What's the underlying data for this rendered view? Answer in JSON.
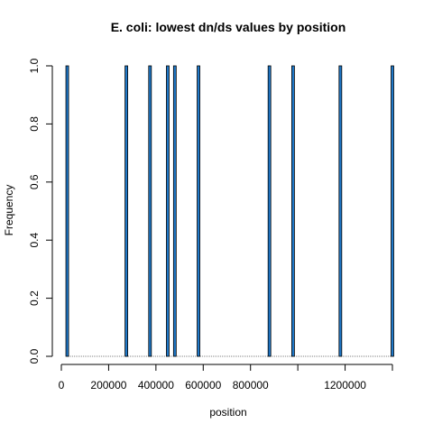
{
  "chart_data": {
    "type": "bar",
    "title": "E. coli: lowest dn/ds values by position",
    "xlabel": "position",
    "ylabel": "Frequency",
    "x_ticks": [
      0,
      200000,
      400000,
      600000,
      800000,
      1200000
    ],
    "x_tick_labels": [
      "0",
      "200000",
      "400000",
      "600000",
      "800000",
      "1200000"
    ],
    "y_ticks": [
      0.0,
      0.2,
      0.4,
      0.6,
      0.8,
      1.0
    ],
    "y_tick_labels": [
      "0.0",
      "0.2",
      "0.4",
      "0.6",
      "0.8",
      "1.0"
    ],
    "xlim": [
      0,
      1400000
    ],
    "ylim": [
      0,
      1
    ],
    "bin_width": 5000,
    "positions": [
      25000,
      275000,
      375000,
      450000,
      480000,
      580000,
      880000,
      980000,
      1180000,
      1400000
    ],
    "values": [
      1,
      1,
      1,
      1,
      1,
      1,
      1,
      1,
      1,
      1
    ],
    "bar_color": "#1f78c8",
    "bar_stroke": "#000000",
    "grid": false
  }
}
